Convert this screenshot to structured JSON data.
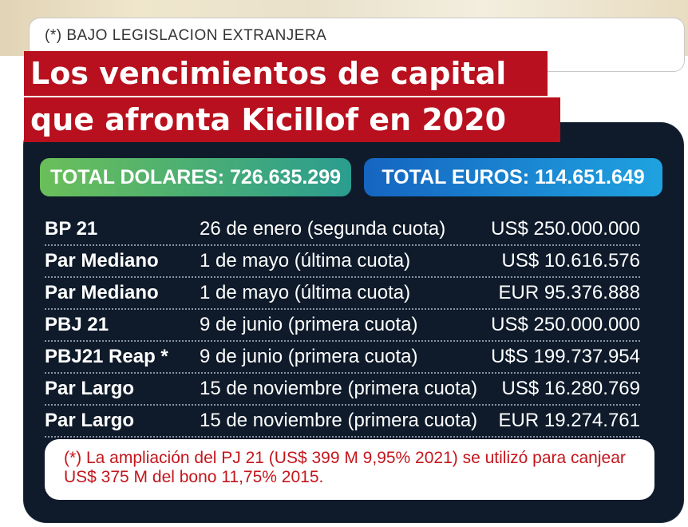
{
  "header": {
    "subtitle": "(*) BAJO LEGISLACION EXTRANJERA",
    "title_line1": "Los vencimientos de capital",
    "title_line2": "que afronta Kicillof en 2020"
  },
  "totals": {
    "dolares": "TOTAL DOLARES: 726.635.299",
    "euros": "TOTAL EUROS: 114.651.649"
  },
  "rows": [
    {
      "name": "BP 21",
      "date": "26 de enero (segunda cuota)",
      "amount": "US$ 250.000.000"
    },
    {
      "name": "Par Mediano",
      "date": "1 de mayo (última cuota)",
      "amount": "US$ 10.616.576"
    },
    {
      "name": "Par Mediano",
      "date": "1 de mayo (última cuota)",
      "amount": "EUR 95.376.888"
    },
    {
      "name": "PBJ 21",
      "date": "9 de junio (primera cuota)",
      "amount": "US$ 250.000.000"
    },
    {
      "name": "PBJ21 Reap *",
      "date": "9 de junio (primera cuota)",
      "amount": "U$S 199.737.954"
    },
    {
      "name": "Par Largo",
      "date": "15 de noviembre (primera cuota)",
      "amount": "US$ 16.280.769"
    },
    {
      "name": "Par Largo",
      "date": "15 de noviembre (primera cuota)",
      "amount": "EUR 19.274.761"
    }
  ],
  "note": "(*) La ampliación del PJ 21 (US$ 399 M 9,95% 2021) se utilizó para canjear US$ 375 M del bono 11,75% 2015.",
  "colors": {
    "title_bg": "#b8101e",
    "panel_bg": "#0f1b2a",
    "note_text": "#c4161c"
  }
}
